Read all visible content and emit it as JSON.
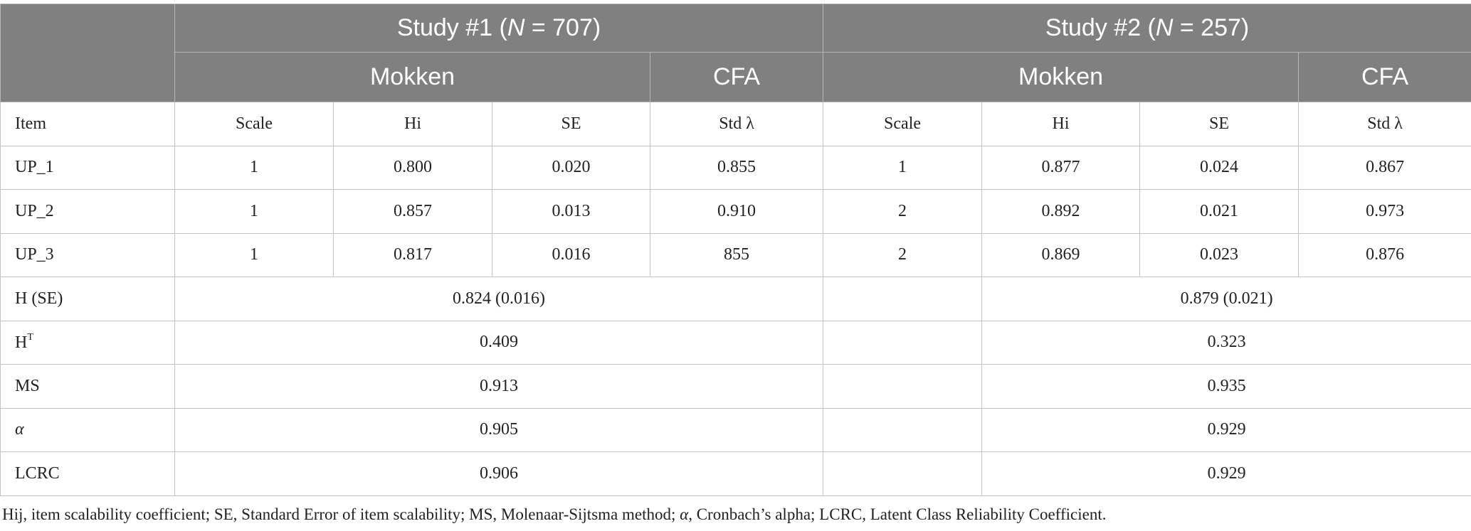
{
  "header": {
    "studies": [
      {
        "prefix": "Study #1 (",
        "n_symbol": "N",
        "suffix": " = 707)"
      },
      {
        "prefix": "Study #2 (",
        "n_symbol": "N",
        "suffix": " = 257)"
      }
    ],
    "subgroups": [
      "Mokken",
      "CFA",
      "Mokken",
      "CFA"
    ],
    "columns": [
      "Item",
      "Scale",
      "Hi",
      "SE",
      "Std λ",
      "Scale",
      "Hi",
      "SE",
      "Std λ"
    ]
  },
  "table": {
    "item_rows": [
      [
        "UP_1",
        "1",
        "0.800",
        "0.020",
        "0.855",
        "1",
        "0.877",
        "0.024",
        "0.867"
      ],
      [
        "UP_2",
        "1",
        "0.857",
        "0.013",
        "0.910",
        "2",
        "0.892",
        "0.021",
        "0.973"
      ],
      [
        "UP_3",
        "1",
        "0.817",
        "0.016",
        "855",
        "2",
        "0.869",
        "0.023",
        "0.876"
      ]
    ],
    "summary_rows": [
      {
        "label": "H (SE)",
        "study1": "0.824 (0.016)",
        "study2": "0.879 (0.021)"
      },
      {
        "label": "H",
        "label_sup": "T",
        "study1": "0.409",
        "study2": "0.323"
      },
      {
        "label": "MS",
        "study1": "0.913",
        "study2": "0.935"
      },
      {
        "label": "α",
        "study1": "0.905",
        "study2": "0.929"
      },
      {
        "label": "LCRC",
        "study1": "0.906",
        "study2": "0.929"
      }
    ]
  },
  "footnote": [
    "Hij, item scalability coefficient; SE, Standard Error of item scalability; MS, Molenaar-Sijtsma method; ",
    "α",
    ", Cronbach’s alpha; LCRC, Latent Class Reliability Coefficient."
  ]
}
